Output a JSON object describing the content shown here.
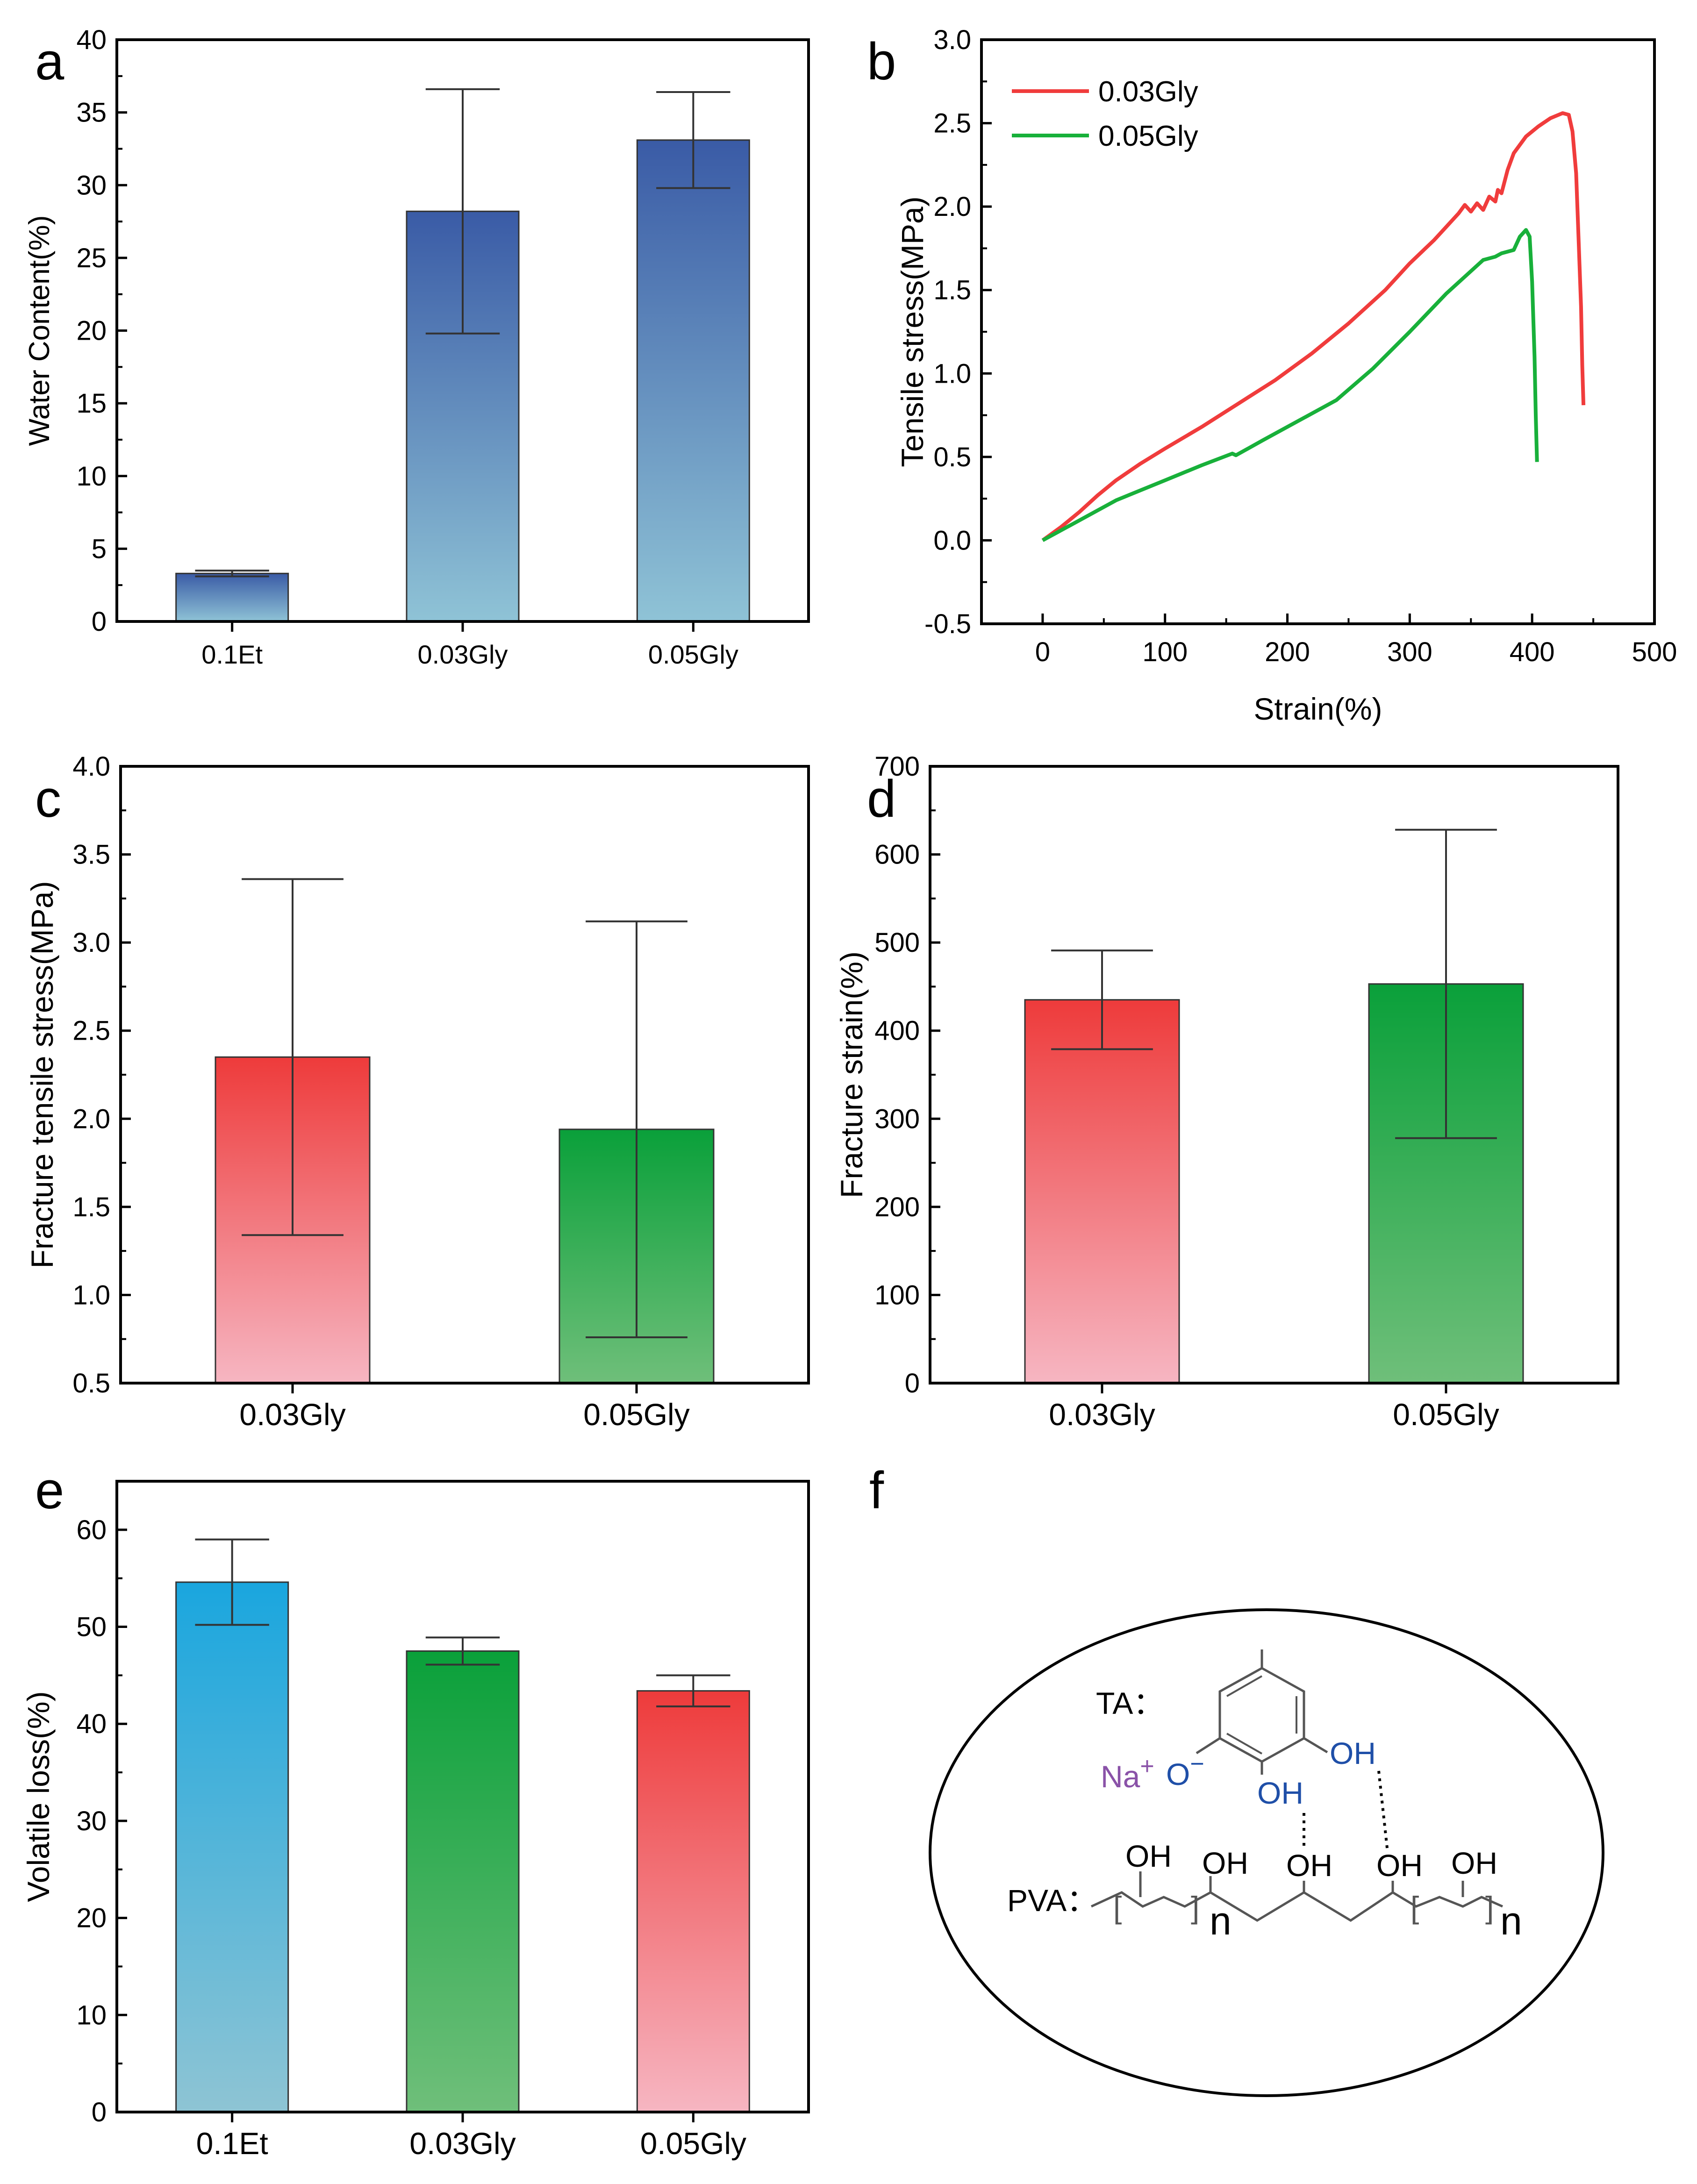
{
  "panels": [
    {
      "letter": "a"
    },
    {
      "letter": "b"
    },
    {
      "letter": "c"
    },
    {
      "letter": "d"
    },
    {
      "letter": "e"
    },
    {
      "letter": "f"
    }
  ],
  "colors": {
    "blue_top": "#3a5ba6",
    "blue_bottom": "#8fc3d6",
    "red_top": "#ee3b3b",
    "red_bottom": "#f6b6c2",
    "green_top": "#0aa03a",
    "green_bottom": "#6fbf7a",
    "cyan_top": "#1aa6de",
    "cyan_bottom": "#8ec4d4",
    "line_red": "#f03c3c",
    "line_green": "#18b03a",
    "chem_blue": "#1f4fa8",
    "chem_purple": "#8a52a8"
  },
  "chart_data": [
    {
      "id": "a",
      "type": "bar",
      "categories": [
        "0.1Et",
        "0.03Gly",
        "0.05Gly"
      ],
      "values": [
        3.3,
        28.2,
        33.1
      ],
      "errors": [
        0.2,
        8.4,
        3.3
      ],
      "ylabel": "Water Content(%)",
      "xlabel": "",
      "ylim": [
        0,
        40
      ],
      "yticks": [
        "0",
        "5",
        "10",
        "15",
        "20",
        "25",
        "30",
        "35",
        "40"
      ],
      "colors": [
        "blue_top",
        "blue_bottom"
      ]
    },
    {
      "id": "b",
      "type": "line",
      "xlabel": "Strain(%)",
      "ylabel": "Tensile stress(MPa)",
      "xlim": [
        -50,
        500
      ],
      "ylim": [
        -0.5,
        3.0
      ],
      "xticks": [
        "0",
        "100",
        "200",
        "300",
        "400",
        "500"
      ],
      "yticks": [
        "-0.5",
        "0.0",
        "0.5",
        "1.0",
        "1.5",
        "2.0",
        "2.5",
        "3.0"
      ],
      "legend_position": "top-left",
      "series": [
        {
          "name": "0.03Gly",
          "color": "line_red",
          "x": [
            0,
            15,
            30,
            45,
            60,
            80,
            100,
            130,
            160,
            190,
            220,
            250,
            280,
            300,
            320,
            340,
            345,
            350,
            355,
            360,
            365,
            370,
            372,
            375,
            380,
            385,
            395,
            405,
            415,
            425,
            430,
            433,
            436,
            438,
            440,
            441,
            442
          ],
          "y": [
            0,
            0.08,
            0.17,
            0.27,
            0.36,
            0.46,
            0.55,
            0.68,
            0.82,
            0.96,
            1.12,
            1.3,
            1.5,
            1.66,
            1.8,
            1.96,
            2.01,
            1.97,
            2.02,
            1.98,
            2.06,
            2.03,
            2.1,
            2.08,
            2.22,
            2.32,
            2.42,
            2.48,
            2.53,
            2.56,
            2.55,
            2.45,
            2.2,
            1.8,
            1.4,
            1.05,
            0.81
          ]
        },
        {
          "name": "0.05Gly",
          "color": "line_green",
          "x": [
            0,
            30,
            60,
            100,
            130,
            155,
            158,
            180,
            210,
            240,
            270,
            300,
            330,
            360,
            370,
            375,
            385,
            390,
            395,
            398,
            400,
            402,
            403,
            404
          ],
          "y": [
            0,
            0.12,
            0.24,
            0.36,
            0.45,
            0.52,
            0.51,
            0.6,
            0.72,
            0.84,
            1.03,
            1.25,
            1.48,
            1.68,
            1.7,
            1.72,
            1.74,
            1.82,
            1.86,
            1.82,
            1.55,
            1.1,
            0.75,
            0.47
          ]
        }
      ]
    },
    {
      "id": "c",
      "type": "bar",
      "categories": [
        "0.03Gly",
        "0.05Gly"
      ],
      "values": [
        2.35,
        1.94
      ],
      "errors": [
        1.01,
        1.18
      ],
      "ylabel": "Fracture tensile stress(MPa)",
      "xlabel": "",
      "ylim": [
        0.5,
        4.0
      ],
      "yticks": [
        "0.5",
        "1.0",
        "1.5",
        "2.0",
        "2.5",
        "3.0",
        "3.5",
        "4.0"
      ],
      "bar_colors": [
        [
          "red_top",
          "red_bottom"
        ],
        [
          "green_top",
          "green_bottom"
        ]
      ]
    },
    {
      "id": "d",
      "type": "bar",
      "categories": [
        "0.03Gly",
        "0.05Gly"
      ],
      "values": [
        435,
        453
      ],
      "errors": [
        56,
        175
      ],
      "ylabel": "Fracture strain(%)",
      "xlabel": "",
      "ylim": [
        0,
        700
      ],
      "yticks": [
        "0",
        "100",
        "200",
        "300",
        "400",
        "500",
        "600",
        "700"
      ],
      "bar_colors": [
        [
          "red_top",
          "red_bottom"
        ],
        [
          "green_top",
          "green_bottom"
        ]
      ]
    },
    {
      "id": "e",
      "type": "bar",
      "categories": [
        "0.1Et",
        "0.03Gly",
        "0.05Gly"
      ],
      "values": [
        54.6,
        47.5,
        43.4
      ],
      "errors": [
        4.4,
        1.4,
        1.6
      ],
      "ylabel": "Volatile loss(%)",
      "xlabel": "",
      "ylim": [
        0,
        65
      ],
      "yticks": [
        "0",
        "10",
        "20",
        "30",
        "40",
        "50",
        "60"
      ],
      "bar_colors": [
        [
          "cyan_top",
          "cyan_bottom"
        ],
        [
          "green_top",
          "green_bottom"
        ],
        [
          "red_top",
          "red_bottom"
        ]
      ]
    }
  ],
  "diagram_f": {
    "ta_label": "TA：",
    "pva_label": "PVA：",
    "na": "Na",
    "plus": "+",
    "o_minus": "O",
    "minus": "−",
    "oh": "OH",
    "n": "n"
  }
}
